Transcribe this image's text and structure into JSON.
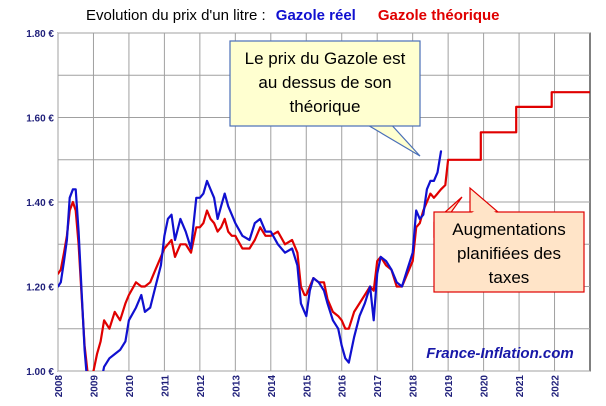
{
  "chart_data": {
    "type": "line",
    "title_prefix": "Evolution  du prix d'un litre : ",
    "ylim": [
      1.0,
      1.8
    ],
    "yticks": [
      1.0,
      1.2,
      1.4,
      1.6,
      1.8
    ],
    "ytick_labels": [
      "1.00 €",
      "1.20 €",
      "1.40 €",
      "1.60 €",
      "1.80 €"
    ],
    "xlim": [
      2008,
      2023
    ],
    "xticks": [
      2008,
      2009,
      2010,
      2011,
      2012,
      2013,
      2014,
      2015,
      2016,
      2017,
      2018,
      2019,
      2020,
      2021,
      2022
    ],
    "xtick_labels": [
      "2008",
      "2009",
      "2010",
      "2011",
      "2012",
      "2013",
      "2014",
      "2015",
      "2016",
      "2017",
      "2018",
      "2019",
      "2020",
      "2021",
      "2022"
    ],
    "grid": true,
    "series": [
      {
        "name": "Gazole réel",
        "color": "#1010d0",
        "x": [
          2008.0,
          2008.08,
          2008.17,
          2008.25,
          2008.33,
          2008.42,
          2008.5,
          2008.58,
          2008.67,
          2008.75,
          2008.83,
          2008.92,
          2009.0,
          2009.1,
          2009.2,
          2009.3,
          2009.45,
          2009.6,
          2009.75,
          2009.9,
          2010.0,
          2010.2,
          2010.35,
          2010.45,
          2010.6,
          2010.75,
          2010.9,
          2011.0,
          2011.1,
          2011.2,
          2011.3,
          2011.45,
          2011.6,
          2011.75,
          2011.9,
          2012.0,
          2012.1,
          2012.2,
          2012.3,
          2012.4,
          2012.5,
          2012.6,
          2012.7,
          2012.8,
          2012.9,
          2013.0,
          2013.2,
          2013.4,
          2013.55,
          2013.7,
          2013.85,
          2014.0,
          2014.2,
          2014.4,
          2014.6,
          2014.75,
          2014.85,
          2014.95,
          2015.0,
          2015.1,
          2015.2,
          2015.35,
          2015.5,
          2015.6,
          2015.75,
          2015.9,
          2016.0,
          2016.1,
          2016.2,
          2016.35,
          2016.5,
          2016.65,
          2016.8,
          2016.9,
          2017.0,
          2017.1,
          2017.25,
          2017.4,
          2017.55,
          2017.7,
          2017.85,
          2018.0,
          2018.1,
          2018.2,
          2018.3,
          2018.4,
          2018.5,
          2018.6,
          2018.7,
          2018.8
        ],
        "values": [
          1.2,
          1.21,
          1.26,
          1.31,
          1.41,
          1.43,
          1.43,
          1.33,
          1.18,
          1.05,
          0.97,
          0.96,
          0.96,
          0.98,
          0.97,
          1.01,
          1.03,
          1.04,
          1.05,
          1.07,
          1.12,
          1.15,
          1.18,
          1.14,
          1.15,
          1.2,
          1.25,
          1.32,
          1.36,
          1.37,
          1.31,
          1.36,
          1.33,
          1.29,
          1.41,
          1.41,
          1.42,
          1.45,
          1.43,
          1.41,
          1.36,
          1.39,
          1.42,
          1.39,
          1.37,
          1.35,
          1.32,
          1.31,
          1.35,
          1.36,
          1.33,
          1.33,
          1.3,
          1.28,
          1.29,
          1.25,
          1.16,
          1.14,
          1.13,
          1.19,
          1.22,
          1.21,
          1.19,
          1.16,
          1.12,
          1.1,
          1.06,
          1.03,
          1.02,
          1.08,
          1.13,
          1.16,
          1.2,
          1.12,
          1.23,
          1.27,
          1.26,
          1.24,
          1.21,
          1.2,
          1.24,
          1.28,
          1.38,
          1.36,
          1.37,
          1.43,
          1.45,
          1.45,
          1.47,
          1.52
        ]
      },
      {
        "name": "Gazole théorique",
        "color": "#e00000",
        "x": [
          2008.0,
          2008.08,
          2008.17,
          2008.25,
          2008.33,
          2008.42,
          2008.5,
          2008.58,
          2008.67,
          2008.75,
          2008.83,
          2008.92,
          2009.0,
          2009.1,
          2009.2,
          2009.3,
          2009.45,
          2009.6,
          2009.75,
          2009.9,
          2010.0,
          2010.2,
          2010.35,
          2010.45,
          2010.6,
          2010.75,
          2010.9,
          2011.0,
          2011.1,
          2011.2,
          2011.3,
          2011.45,
          2011.6,
          2011.75,
          2011.9,
          2012.0,
          2012.1,
          2012.2,
          2012.3,
          2012.4,
          2012.5,
          2012.6,
          2012.7,
          2012.8,
          2012.9,
          2013.0,
          2013.2,
          2013.4,
          2013.55,
          2013.7,
          2013.85,
          2014.0,
          2014.2,
          2014.4,
          2014.6,
          2014.75,
          2014.85,
          2014.95,
          2015.0,
          2015.1,
          2015.2,
          2015.35,
          2015.5,
          2015.6,
          2015.75,
          2015.9,
          2016.0,
          2016.1,
          2016.2,
          2016.35,
          2016.5,
          2016.65,
          2016.8,
          2016.9,
          2017.0,
          2017.1,
          2017.25,
          2017.4,
          2017.55,
          2017.7,
          2017.85,
          2018.0,
          2018.1,
          2018.2,
          2018.3,
          2018.4,
          2018.5,
          2018.6,
          2018.7,
          2018.8,
          2018.92,
          2019.0,
          2019.92,
          2019.92,
          2020.92,
          2020.92,
          2021.92,
          2021.92,
          2023.0
        ],
        "values": [
          1.23,
          1.24,
          1.28,
          1.32,
          1.38,
          1.4,
          1.38,
          1.3,
          1.17,
          1.06,
          1.0,
          0.99,
          1.0,
          1.04,
          1.07,
          1.12,
          1.1,
          1.14,
          1.12,
          1.16,
          1.18,
          1.21,
          1.2,
          1.2,
          1.21,
          1.24,
          1.27,
          1.29,
          1.3,
          1.31,
          1.27,
          1.3,
          1.3,
          1.28,
          1.34,
          1.34,
          1.35,
          1.38,
          1.36,
          1.35,
          1.33,
          1.34,
          1.36,
          1.33,
          1.32,
          1.32,
          1.29,
          1.29,
          1.31,
          1.34,
          1.32,
          1.32,
          1.33,
          1.3,
          1.31,
          1.28,
          1.2,
          1.18,
          1.18,
          1.2,
          1.22,
          1.21,
          1.21,
          1.17,
          1.14,
          1.13,
          1.12,
          1.1,
          1.1,
          1.14,
          1.16,
          1.18,
          1.2,
          1.19,
          1.26,
          1.27,
          1.25,
          1.24,
          1.2,
          1.2,
          1.23,
          1.26,
          1.34,
          1.35,
          1.38,
          1.4,
          1.42,
          1.41,
          1.42,
          1.43,
          1.44,
          1.5,
          1.5,
          1.565,
          1.565,
          1.625,
          1.625,
          1.66,
          1.66
        ]
      }
    ],
    "annotations": [
      {
        "id": "callout-prix",
        "lines": [
          "Le prix du Gazole est",
          "au dessus de son",
          "théorique"
        ]
      },
      {
        "id": "callout-taxes",
        "lines": [
          "Augmentations",
          "planifiées des",
          "taxes"
        ]
      }
    ],
    "watermark": "France-Inflation.com"
  }
}
